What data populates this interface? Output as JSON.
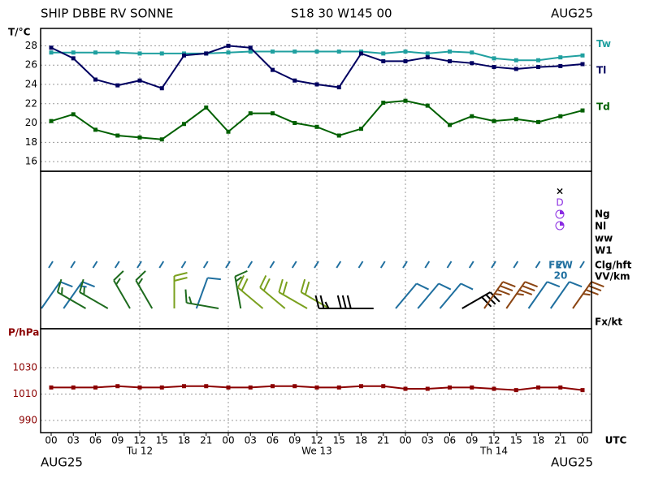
{
  "header": {
    "station": "SHIP DBBE RV SONNE",
    "position": "S18 30 W145 00",
    "month_top": "AUG25",
    "month_bottom_left": "AUG25",
    "month_bottom_right": "AUG25"
  },
  "x_axis": {
    "categories": [
      "00",
      "03",
      "06",
      "09",
      "12",
      "15",
      "18",
      "21",
      "00",
      "03",
      "06",
      "09",
      "12",
      "15",
      "18",
      "21",
      "00",
      "03",
      "06",
      "09",
      "12",
      "15",
      "18",
      "21",
      "00"
    ],
    "days": [
      "Tu 12",
      "We 13",
      "Th 14"
    ],
    "unit": "UTC"
  },
  "chart_data": [
    {
      "type": "line",
      "ylabel": "T/°C",
      "ylim": [
        15,
        29.8
      ],
      "yticks": [
        16,
        18,
        20,
        22,
        24,
        26,
        28
      ],
      "grid": true,
      "series": [
        {
          "name": "Tw",
          "color": "#20a0a0",
          "values": [
            27.3,
            27.3,
            27.3,
            27.3,
            27.2,
            27.2,
            27.2,
            27.2,
            27.3,
            27.4,
            27.4,
            27.4,
            27.4,
            27.4,
            27.4,
            27.2,
            27.4,
            27.2,
            27.4,
            27.3,
            26.7,
            26.5,
            26.5,
            26.8,
            27.0
          ]
        },
        {
          "name": "Tl",
          "color": "#000060",
          "values": [
            27.8,
            26.7,
            24.5,
            23.9,
            24.4,
            23.6,
            27.0,
            27.2,
            28.0,
            27.8,
            25.5,
            24.4,
            24.0,
            23.7,
            27.2,
            26.4,
            26.4,
            26.8,
            26.4,
            26.2,
            25.8,
            25.6,
            25.8,
            25.9,
            26.1
          ]
        },
        {
          "name": "Td",
          "color": "#006000",
          "values": [
            20.2,
            20.9,
            19.3,
            18.7,
            18.5,
            18.3,
            19.9,
            21.6,
            19.1,
            21.0,
            21.0,
            20.0,
            19.6,
            18.7,
            19.4,
            22.1,
            22.3,
            21.8,
            19.8,
            20.7,
            20.2,
            20.4,
            20.1,
            20.7,
            21.3
          ]
        }
      ]
    },
    {
      "type": "barb",
      "rows": [
        "Ng",
        "Nl",
        "ww",
        "W1",
        "Clg/hft",
        "VV/km",
        "Fx/kt"
      ],
      "cloud": "FEW",
      "cloud_height": "20",
      "direction": [
        35,
        35,
        300,
        300,
        330,
        330,
        0,
        20,
        280,
        350,
        310,
        310,
        300,
        300,
        270,
        270,
        40,
        40,
        40,
        60,
        35,
        35,
        35,
        35,
        35
      ],
      "speed": [
        10,
        15,
        15,
        15,
        15,
        15,
        20,
        10,
        15,
        15,
        20,
        20,
        20,
        20,
        25,
        30,
        10,
        10,
        10,
        30,
        35,
        35,
        10,
        10,
        35
      ],
      "colors": [
        "#1f6f9f",
        "#1f6f9f",
        "#1e6b1e",
        "#1e6b1e",
        "#1e6b1e",
        "#1e6b1e",
        "#7aa01e",
        "#1f6f9f",
        "#1e6b1e",
        "#1e6b1e",
        "#7aa01e",
        "#7aa01e",
        "#7aa01e",
        "#7aa01e",
        "#000000",
        "#000000",
        "#1f6f9f",
        "#1f6f9f",
        "#1f6f9f",
        "#000000",
        "#8b4513",
        "#8b4513",
        "#1f6f9f",
        "#1f6f9f",
        "#8b4513"
      ]
    },
    {
      "type": "line",
      "ylabel": "P/hPa",
      "ylim": [
        980.8,
        1059.5
      ],
      "yticks": [
        990,
        1010,
        1030
      ],
      "grid": true,
      "series": [
        {
          "name": "P",
          "color": "#8b0000",
          "values": [
            1015,
            1015,
            1015,
            1016,
            1015,
            1015,
            1016,
            1016,
            1015,
            1015,
            1016,
            1016,
            1015,
            1015,
            1016,
            1016,
            1014,
            1014,
            1015,
            1015,
            1014,
            1013,
            1015,
            1015,
            1013
          ]
        }
      ]
    }
  ]
}
